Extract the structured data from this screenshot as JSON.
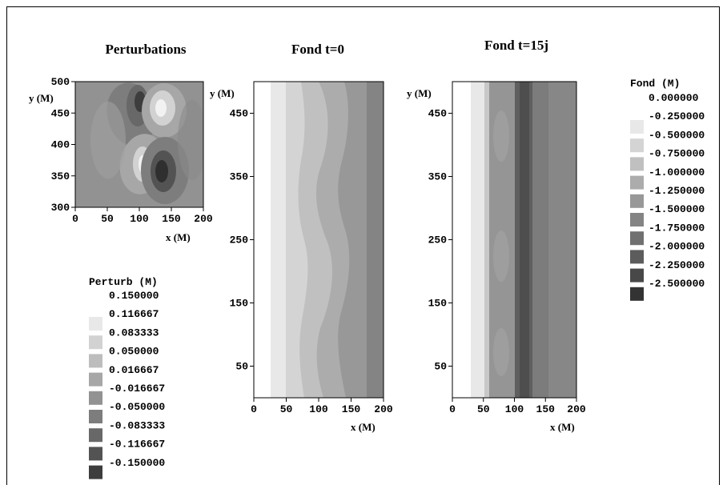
{
  "chart_data": [
    {
      "type": "heatmap",
      "title": "Perturbations",
      "xlabel": "x (M)",
      "ylabel": "y (M)",
      "xlim": [
        0,
        200
      ],
      "ylim": [
        300,
        500
      ],
      "xticks": [
        "0",
        "50",
        "100",
        "150",
        "200"
      ],
      "yticks": [
        "300",
        "350",
        "400",
        "450",
        "500"
      ],
      "legend": {
        "title": "Perturb (M)",
        "levels": [
          "0.150000",
          "0.116667",
          "0.083333",
          "0.050000",
          "0.016667",
          "-0.016667",
          "-0.050000",
          "-0.083333",
          "-0.116667",
          "-0.150000"
        ],
        "colors": [
          "#e8e8e8",
          "#d2d2d2",
          "#bdbdbd",
          "#a7a7a7",
          "#929292",
          "#7d7d7d",
          "#686868",
          "#535353",
          "#3d3d3d"
        ]
      }
    },
    {
      "type": "heatmap",
      "title": "Fond  t=0",
      "xlabel": "x (M)",
      "ylabel": "y (M)",
      "xlim": [
        0,
        200
      ],
      "ylim": [
        0,
        500
      ],
      "xticks": [
        "0",
        "50",
        "100",
        "150",
        "200"
      ],
      "yticks": [
        "50",
        "150",
        "250",
        "350",
        "450"
      ]
    },
    {
      "type": "heatmap",
      "title": "Fond  t=15j",
      "xlabel": "x (M)",
      "ylabel": "y (M)",
      "xlim": [
        0,
        200
      ],
      "ylim": [
        0,
        500
      ],
      "xticks": [
        "0",
        "50",
        "100",
        "150",
        "200"
      ],
      "yticks": [
        "50",
        "150",
        "250",
        "350",
        "450"
      ],
      "legend": {
        "title": "Fond (M)",
        "levels": [
          "0.000000",
          "-0.250000",
          "-0.500000",
          "-0.750000",
          "-1.000000",
          "-1.250000",
          "-1.500000",
          "-1.750000",
          "-2.000000",
          "-2.250000",
          "-2.500000"
        ],
        "colors": [
          "#e8e8e8",
          "#d4d4d4",
          "#c0c0c0",
          "#acacac",
          "#989898",
          "#848484",
          "#707070",
          "#5c5c5c",
          "#484848",
          "#333333"
        ]
      }
    }
  ]
}
